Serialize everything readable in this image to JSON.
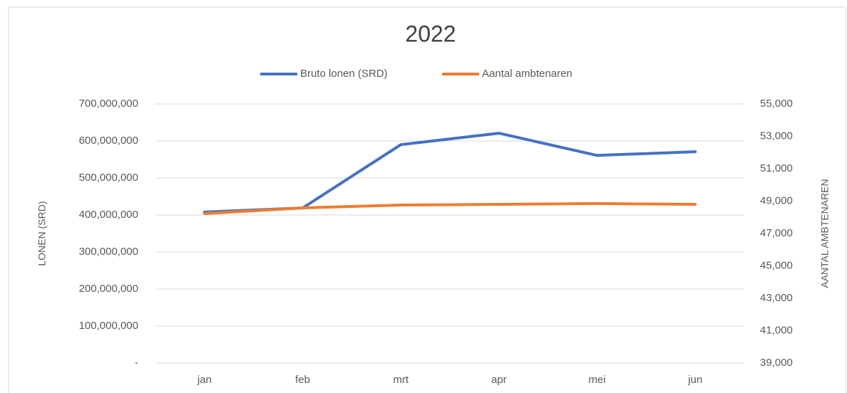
{
  "chart_data": {
    "type": "line",
    "title": "2022",
    "categories": [
      "jan",
      "feb",
      "mrt",
      "apr",
      "mei",
      "jun"
    ],
    "series": [
      {
        "name": "Bruto lonen (SRD)",
        "color": "#4472c4",
        "values": [
          408000000,
          419000000,
          590000000,
          621000000,
          561000000,
          571000000
        ]
      },
      {
        "name": "Aantal ambtenaren",
        "color": "#ed7d31",
        "axis": "y2",
        "values": [
          48230,
          48580,
          48760,
          48800,
          48850,
          48800
        ]
      }
    ],
    "ylabel": "LONEN (SRD)",
    "y2label": "AANTAL AMBTENAREN",
    "ylim": [
      0,
      700000000
    ],
    "yticks": [
      {
        "value": 0,
        "label": "-"
      },
      {
        "value": 100000000,
        "label": "100,000,000"
      },
      {
        "value": 200000000,
        "label": "200,000,000"
      },
      {
        "value": 300000000,
        "label": "300,000,000"
      },
      {
        "value": 400000000,
        "label": "400,000,000"
      },
      {
        "value": 500000000,
        "label": "500,000,000"
      },
      {
        "value": 600000000,
        "label": "600,000,000"
      },
      {
        "value": 700000000,
        "label": "700,000,000"
      }
    ],
    "y2lim": [
      39000,
      55000
    ],
    "y2ticks": [
      {
        "value": 39000,
        "label": "39,000"
      },
      {
        "value": 41000,
        "label": "41,000"
      },
      {
        "value": 43000,
        "label": "43,000"
      },
      {
        "value": 45000,
        "label": "45,000"
      },
      {
        "value": 47000,
        "label": "47,000"
      },
      {
        "value": 49000,
        "label": "49,000"
      },
      {
        "value": 51000,
        "label": "51,000"
      },
      {
        "value": 53000,
        "label": "53,000"
      },
      {
        "value": 55000,
        "label": "55,000"
      }
    ],
    "grid": true,
    "legend": "top"
  }
}
